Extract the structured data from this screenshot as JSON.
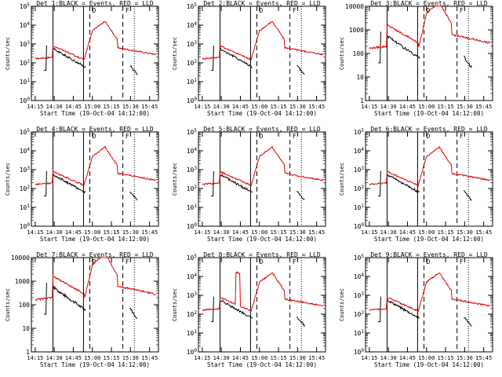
{
  "chart_data": {
    "type": "line",
    "x_unit_label": "Start Time (19-Oct-04 14:12:00)",
    "x_ticks": [
      "14:15",
      "14:30",
      "14:45",
      "15:00",
      "15:15",
      "15:30",
      "15:45"
    ],
    "ylabel": "Counts/sec",
    "legend_text": "BLACK = Events, RED = LLD",
    "series_colors": {
      "events": "#000000",
      "lld": "#e00000"
    },
    "panels": [
      {
        "title": "Det 1:",
        "yscale": "log",
        "ylim": [
          1,
          100000
        ],
        "y_ticks": [
          "10^0",
          "10^1",
          "10^2",
          "10^3",
          "10^4",
          "10^5"
        ],
        "ring": false
      },
      {
        "title": "Det 2:",
        "yscale": "log",
        "ylim": [
          1,
          100000
        ],
        "y_ticks": [
          "10^0",
          "10^1",
          "10^2",
          "10^3",
          "10^4",
          "10^5"
        ],
        "ring": false
      },
      {
        "title": "Det 3:",
        "yscale": "log",
        "ylim": [
          1,
          10000
        ],
        "y_ticks": [
          "1",
          "10",
          "100",
          "1000",
          "10000"
        ],
        "ring": false
      },
      {
        "title": "Det 4:",
        "yscale": "log",
        "ylim": [
          1,
          100000
        ],
        "y_ticks": [
          "10^0",
          "10^1",
          "10^2",
          "10^3",
          "10^4",
          "10^5"
        ],
        "ring": false
      },
      {
        "title": "Det 5:",
        "yscale": "log",
        "ylim": [
          1,
          100000
        ],
        "y_ticks": [
          "10^0",
          "10^1",
          "10^2",
          "10^3",
          "10^4",
          "10^5"
        ],
        "ring": false
      },
      {
        "title": "Det 6:",
        "yscale": "log",
        "ylim": [
          1,
          100000
        ],
        "y_ticks": [
          "10^0",
          "10^1",
          "10^2",
          "10^3",
          "10^4",
          "10^5"
        ],
        "ring": false
      },
      {
        "title": "Det 7:",
        "yscale": "log",
        "ylim": [
          1,
          10000
        ],
        "y_ticks": [
          "1",
          "10",
          "100",
          "1000",
          "10000"
        ],
        "ring": false
      },
      {
        "title": "Det 8:",
        "yscale": "log",
        "ylim": [
          1,
          100000
        ],
        "y_ticks": [
          "10^0",
          "10^1",
          "10^2",
          "10^3",
          "10^4",
          "10^5"
        ],
        "ring": true
      },
      {
        "title": "Det 9:",
        "yscale": "log",
        "ylim": [
          1,
          100000
        ],
        "y_ticks": [
          "10^0",
          "10^1",
          "10^2",
          "10^3",
          "10^4",
          "10^5"
        ],
        "ring": false
      }
    ],
    "markers": {
      "D_time": "14:58",
      "F_time": "15:30"
    }
  }
}
